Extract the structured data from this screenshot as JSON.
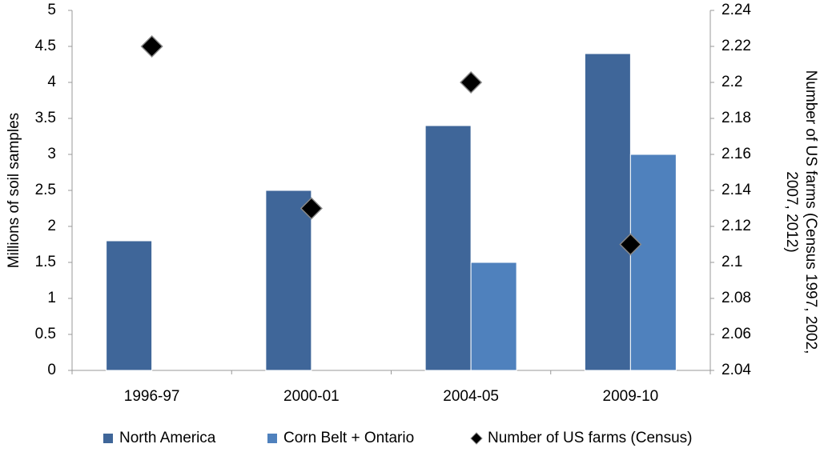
{
  "chart_data": {
    "type": "bar",
    "categories": [
      "1996-97",
      "2000-01",
      "2004-05",
      "2009-10"
    ],
    "series": [
      {
        "name": "North America",
        "color": "#3f6699",
        "values": [
          1.8,
          2.5,
          3.4,
          4.4
        ]
      },
      {
        "name": "Corn Belt + Ontario",
        "color": "#4f81bd",
        "values": [
          null,
          null,
          1.5,
          3.0
        ]
      },
      {
        "name": "Number of US farms (Census)",
        "color": "#000000",
        "type": "scatter",
        "marker": "diamond",
        "axis": "y2",
        "values": [
          2.22,
          2.13,
          2.2,
          2.11
        ]
      }
    ],
    "ylabel": "Millions of soil samples",
    "y2label": "Number  of US farms (Census 1997, 2002, 2007, 2012)",
    "ylim": [
      0,
      5
    ],
    "yticks": [
      0,
      0.5,
      1,
      1.5,
      2,
      2.5,
      3,
      3.5,
      4,
      4.5,
      5
    ],
    "y2lim": [
      2.04,
      2.24
    ],
    "y2ticks": [
      2.04,
      2.06,
      2.08,
      2.1,
      2.12,
      2.14,
      2.16,
      2.18,
      2.2,
      2.22,
      2.24
    ],
    "legend": "bottom",
    "grid": false
  }
}
